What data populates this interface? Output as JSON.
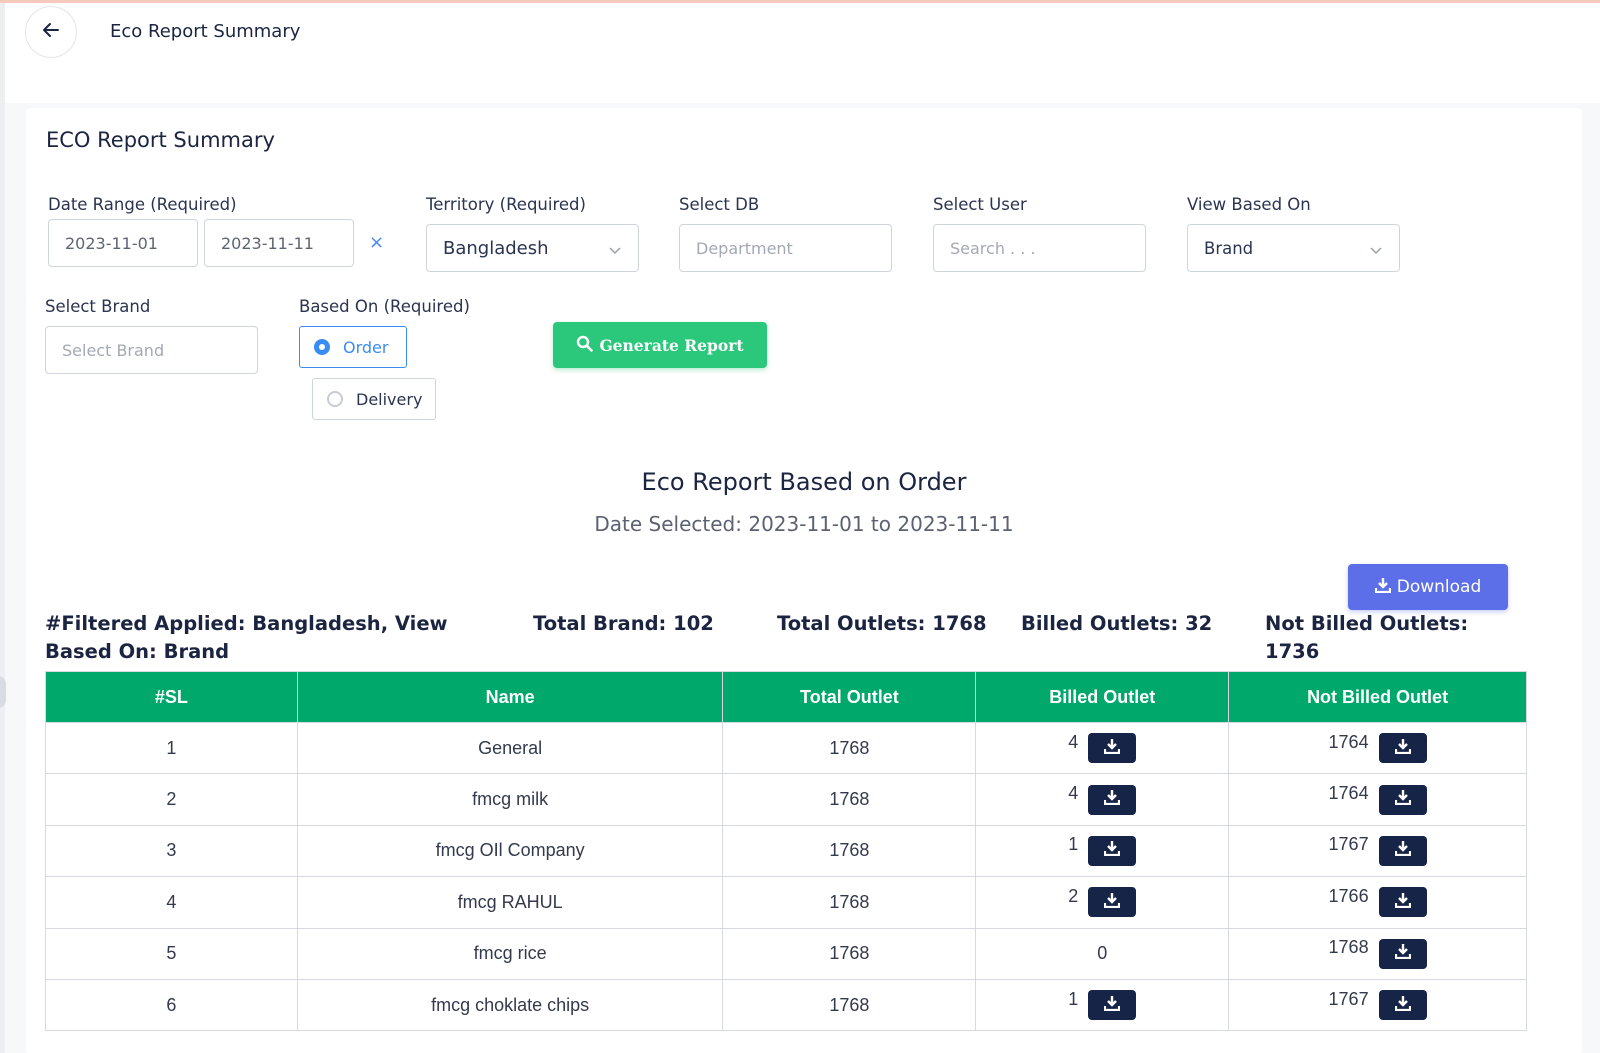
{
  "header": {
    "title": "Eco Report Summary"
  },
  "card": {
    "title": "ECO Report Summary"
  },
  "filters": {
    "date_range_label": "Date Range (Required)",
    "date_from": "2023-11-01",
    "date_to": "2023-11-11",
    "clear_symbol": "×",
    "territory_label": "Territory (Required)",
    "territory_value": "Bangladesh",
    "db_label": "Select DB",
    "db_placeholder": "Department",
    "user_label": "Select User",
    "user_placeholder": "Search . . .",
    "view_label": "View Based On",
    "view_value": "Brand",
    "brand_label": "Select Brand",
    "brand_placeholder": "Select Brand",
    "based_on_label": "Based On (Required)",
    "based_on_options": [
      "Order",
      "Delivery"
    ],
    "based_on_selected": "Order",
    "generate_label": "Generate Report"
  },
  "report": {
    "title": "Eco Report Based on Order",
    "subtitle": "Date Selected: 2023-11-01 to 2023-11-11",
    "download_label": "Download",
    "filtered_applied": "#Filtered Applied: Bangladesh, View Based On: Brand",
    "total_brand": "Total Brand: 102",
    "total_outlets": "Total Outlets: 1768",
    "billed_outlets": "Billed Outlets: 32",
    "not_billed_outlets": "Not Billed Outlets: 1736"
  },
  "table": {
    "columns": [
      "#SL",
      "Name",
      "Total Outlet",
      "Billed Outlet",
      "Not Billed Outlet"
    ],
    "rows": [
      {
        "sl": "1",
        "name": "General",
        "total": "1768",
        "billed": "4",
        "billed_download": true,
        "not_billed": "1764"
      },
      {
        "sl": "2",
        "name": "fmcg milk",
        "total": "1768",
        "billed": "4",
        "billed_download": true,
        "not_billed": "1764"
      },
      {
        "sl": "3",
        "name": "fmcg OIl Company",
        "total": "1768",
        "billed": "1",
        "billed_download": true,
        "not_billed": "1767"
      },
      {
        "sl": "4",
        "name": "fmcg RAHUL",
        "total": "1768",
        "billed": "2",
        "billed_download": true,
        "not_billed": "1766"
      },
      {
        "sl": "5",
        "name": "fmcg rice",
        "total": "1768",
        "billed": "0",
        "billed_download": false,
        "not_billed": "1768"
      },
      {
        "sl": "6",
        "name": "fmcg choklate chips",
        "total": "1768",
        "billed": "1",
        "billed_download": true,
        "not_billed": "1767"
      }
    ]
  },
  "colors": {
    "table_header": "#00a86b",
    "generate_button": "#2bc87c",
    "download_button": "#5c6fe8",
    "row_download_button": "#162447",
    "radio_active": "#3a8cf5"
  },
  "icons": {
    "back": "arrow-left-icon",
    "chevron": "chevron-down-icon",
    "search": "search-icon",
    "download": "download-icon"
  }
}
